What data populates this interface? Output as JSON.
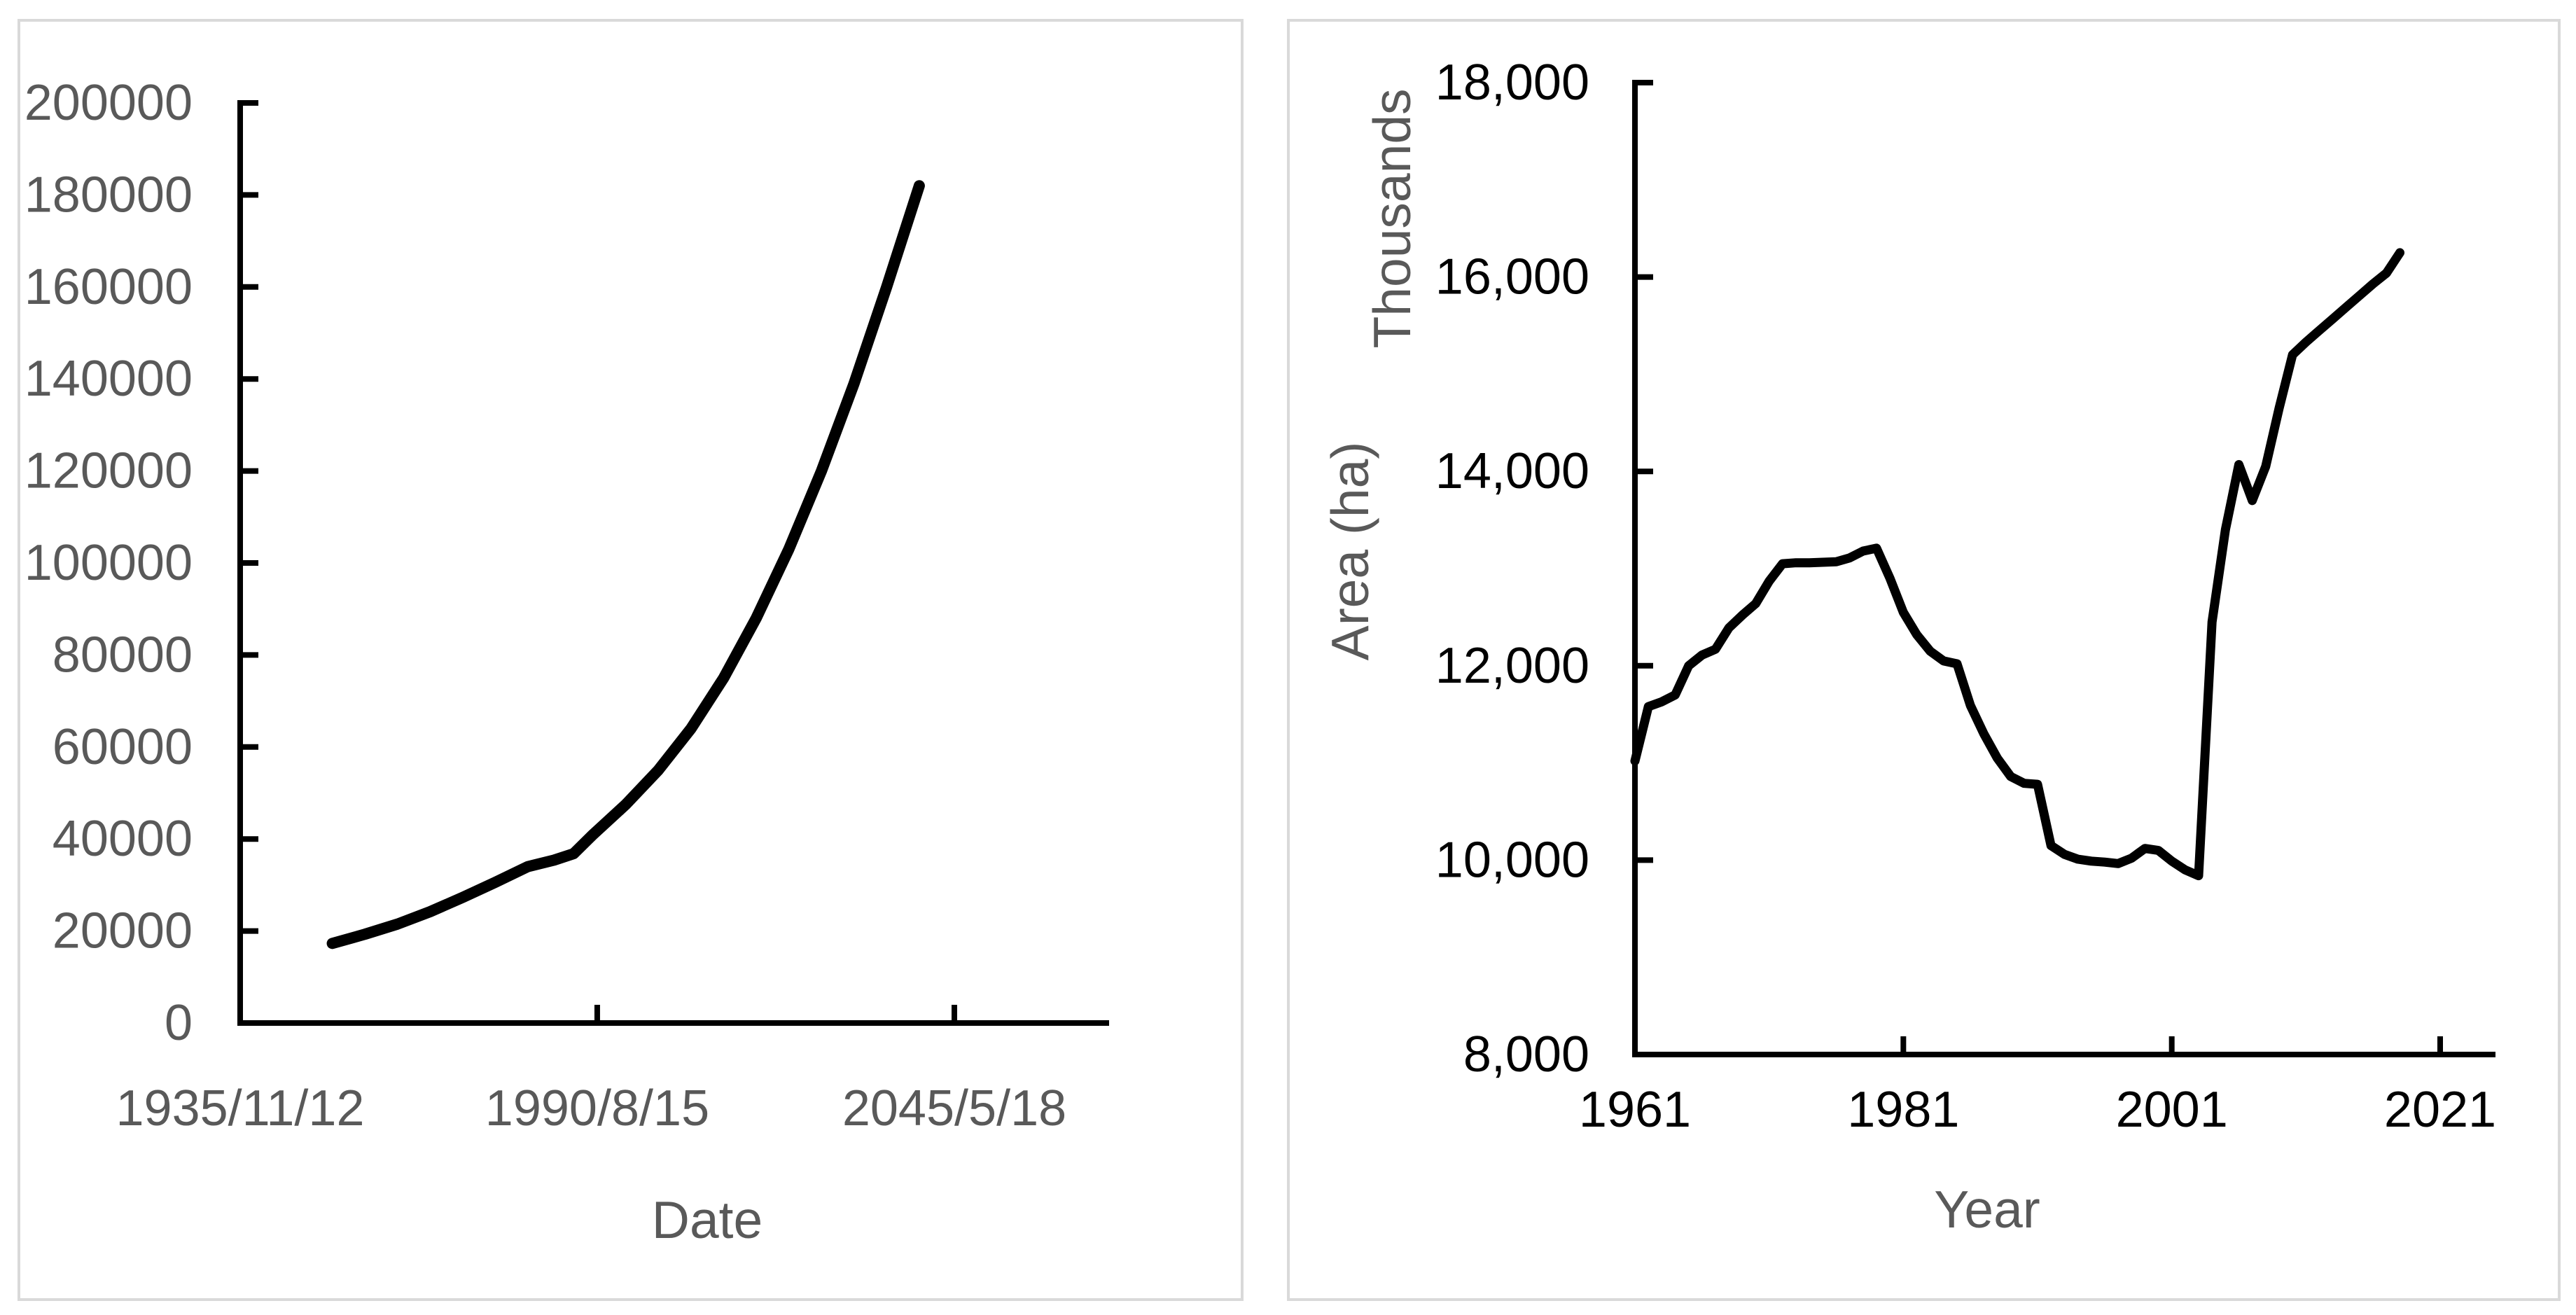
{
  "page": {
    "background": "#ffffff",
    "panel_border_color": "#d9d9d9",
    "axis_color": "#000000",
    "series_color": "#000000",
    "gray_text_color": "#595959",
    "black_text_color": "#000000"
  },
  "chart_data": [
    {
      "id": "left-chart",
      "type": "line",
      "title": "",
      "xlabel": "Date",
      "ylabel": "",
      "legend": "none",
      "grid": "off",
      "tick_label_color": "#595959",
      "axis_title_color": "#595959",
      "line_color": "#000000",
      "ylim": [
        0,
        200000
      ],
      "x_ticks": [
        {
          "label": "1935/11/12",
          "t": 1935.87
        },
        {
          "label": "1990/8/15",
          "t": 1990.62
        },
        {
          "label": "2045/5/18",
          "t": 2045.38
        }
      ],
      "y_ticks": [
        {
          "label": "0",
          "v": 0
        },
        {
          "label": "20000",
          "v": 20000
        },
        {
          "label": "40000",
          "v": 40000
        },
        {
          "label": "60000",
          "v": 60000
        },
        {
          "label": "80000",
          "v": 80000
        },
        {
          "label": "100000",
          "v": 100000
        },
        {
          "label": "120000",
          "v": 120000
        },
        {
          "label": "140000",
          "v": 140000
        },
        {
          "label": "160000",
          "v": 160000
        },
        {
          "label": "180000",
          "v": 180000
        },
        {
          "label": "200000",
          "v": 200000
        }
      ],
      "series": [
        {
          "name": "date-series",
          "points": [
            [
              1950,
              17300
            ],
            [
              1955,
              19300
            ],
            [
              1960,
              21500
            ],
            [
              1965,
              24200
            ],
            [
              1970,
              27300
            ],
            [
              1975,
              30600
            ],
            [
              1980,
              34000
            ],
            [
              1984,
              35400
            ],
            [
              1987,
              36800
            ],
            [
              1990,
              41000
            ],
            [
              1995,
              47500
            ],
            [
              2000,
              55000
            ],
            [
              2005,
              64000
            ],
            [
              2010,
              75000
            ],
            [
              2015,
              88000
            ],
            [
              2020,
              103000
            ],
            [
              2025,
              120000
            ],
            [
              2030,
              139000
            ],
            [
              2035,
              160000
            ],
            [
              2040,
              182000
            ]
          ]
        }
      ]
    },
    {
      "id": "right-chart",
      "type": "line",
      "title": "",
      "xlabel": "Year",
      "ylabel": "Area (ha)",
      "y_display_units": "Thousands",
      "legend": "none",
      "grid": "off",
      "tick_label_color": "#000000",
      "axis_title_color": "#595959",
      "line_color": "#000000",
      "ylim": [
        8000,
        18000
      ],
      "xlim": [
        1961,
        2021
      ],
      "x_ticks": [
        {
          "label": "1961",
          "t": 1961
        },
        {
          "label": "1981",
          "t": 1981
        },
        {
          "label": "2001",
          "t": 2001
        },
        {
          "label": "2021",
          "t": 2021
        }
      ],
      "y_ticks": [
        {
          "label": "8,000",
          "v": 8000
        },
        {
          "label": "10,000",
          "v": 10000
        },
        {
          "label": "12,000",
          "v": 12000
        },
        {
          "label": "14,000",
          "v": 14000
        },
        {
          "label": "16,000",
          "v": 16000
        },
        {
          "label": "18,000",
          "v": 18000
        }
      ],
      "series": [
        {
          "name": "area-series",
          "points": [
            [
              1961,
              11020
            ],
            [
              1962,
              11580
            ],
            [
              1963,
              11630
            ],
            [
              1964,
              11700
            ],
            [
              1965,
              12000
            ],
            [
              1966,
              12110
            ],
            [
              1967,
              12170
            ],
            [
              1968,
              12390
            ],
            [
              1969,
              12520
            ],
            [
              1970,
              12640
            ],
            [
              1971,
              12870
            ],
            [
              1972,
              13050
            ],
            [
              1973,
              13060
            ],
            [
              1974,
              13060
            ],
            [
              1975,
              13065
            ],
            [
              1976,
              13070
            ],
            [
              1977,
              13110
            ],
            [
              1978,
              13180
            ],
            [
              1979,
              13210
            ],
            [
              1980,
              12900
            ],
            [
              1981,
              12550
            ],
            [
              1982,
              12320
            ],
            [
              1983,
              12150
            ],
            [
              1984,
              12050
            ],
            [
              1985,
              12020
            ],
            [
              1986,
              11590
            ],
            [
              1987,
              11300
            ],
            [
              1988,
              11050
            ],
            [
              1989,
              10860
            ],
            [
              1990,
              10790
            ],
            [
              1991,
              10780
            ],
            [
              1992,
              10150
            ],
            [
              1993,
              10060
            ],
            [
              1994,
              10010
            ],
            [
              1995,
              9990
            ],
            [
              1996,
              9980
            ],
            [
              1997,
              9965
            ],
            [
              1998,
              10020
            ],
            [
              1999,
              10120
            ],
            [
              2000,
              10100
            ],
            [
              2001,
              9990
            ],
            [
              2002,
              9900
            ],
            [
              2003,
              9840
            ],
            [
              2004,
              12450
            ],
            [
              2005,
              13400
            ],
            [
              2006,
              14070
            ],
            [
              2007,
              13700
            ],
            [
              2008,
              14050
            ],
            [
              2009,
              14650
            ],
            [
              2010,
              15200
            ],
            [
              2011,
              15330
            ],
            [
              2012,
              15450
            ],
            [
              2013,
              15570
            ],
            [
              2014,
              15690
            ],
            [
              2015,
              15810
            ],
            [
              2016,
              15930
            ],
            [
              2017,
              16040
            ],
            [
              2018,
              16250
            ]
          ]
        }
      ]
    }
  ]
}
